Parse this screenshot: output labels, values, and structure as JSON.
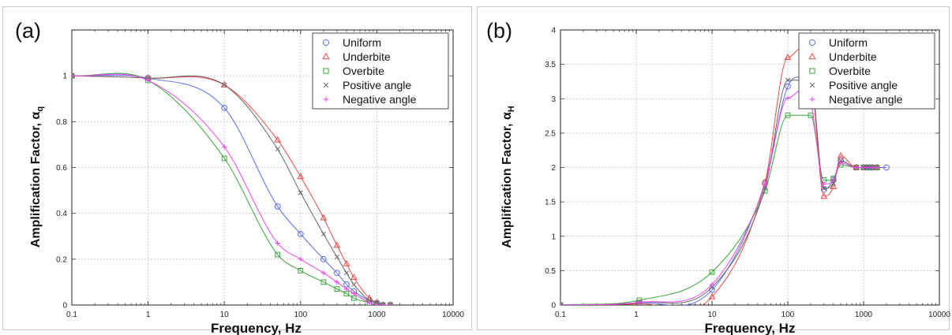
{
  "colors": {
    "Uniform": "#5b6ee8",
    "Underbite": "#ef4a4a",
    "Overbite": "#3aa53a",
    "Positive angle": "#666666",
    "Negative angle": "#ee44ee"
  },
  "chart_data": [
    {
      "type": "line",
      "panel_label": "(a)",
      "xlabel": "Frequency, Hz",
      "ylabel": "Amplification Factor, α",
      "ylabel_sub": "q",
      "xscale": "log",
      "xlim": [
        0.1,
        10000
      ],
      "ylim": [
        0,
        1.2
      ],
      "xticks": [
        0.1,
        1,
        10,
        100,
        1000,
        10000
      ],
      "xtick_labels": [
        "0.1",
        "1",
        "10",
        "100",
        "1000",
        "10000"
      ],
      "yticks": [
        0,
        0.2,
        0.4,
        0.6,
        0.8,
        1
      ],
      "ytick_labels": [
        "0",
        "0.2",
        "0.4",
        "0.6",
        "0.8",
        "1"
      ],
      "grid": true,
      "legend_position": "top-right",
      "series": [
        {
          "name": "Uniform",
          "marker": "circle",
          "x": [
            0.1,
            1,
            10,
            50,
            100,
            200,
            300,
            400,
            500,
            800,
            1000,
            1200,
            1500
          ],
          "y": [
            1.0,
            0.99,
            0.86,
            0.43,
            0.31,
            0.2,
            0.14,
            0.09,
            0.06,
            0.02,
            0.01,
            0.0,
            0.0
          ]
        },
        {
          "name": "Underbite",
          "marker": "triangle",
          "x": [
            0.1,
            1,
            10,
            50,
            100,
            200,
            300,
            400,
            500,
            800,
            1000,
            1200,
            1500
          ],
          "y": [
            1.0,
            0.99,
            0.96,
            0.72,
            0.56,
            0.38,
            0.26,
            0.18,
            0.12,
            0.03,
            0.01,
            0.0,
            0.0
          ]
        },
        {
          "name": "Overbite",
          "marker": "square",
          "x": [
            0.1,
            1,
            10,
            50,
            100,
            200,
            300,
            400,
            500,
            800,
            1000,
            1200,
            1500
          ],
          "y": [
            1.0,
            0.98,
            0.64,
            0.22,
            0.15,
            0.1,
            0.07,
            0.05,
            0.03,
            0.01,
            0.0,
            0.0,
            0.0
          ]
        },
        {
          "name": "Positive angle",
          "marker": "x",
          "x": [
            0.1,
            1,
            10,
            50,
            100,
            200,
            300,
            400,
            500,
            800,
            1000,
            1200,
            1500
          ],
          "y": [
            1.0,
            0.99,
            0.96,
            0.68,
            0.49,
            0.31,
            0.21,
            0.14,
            0.09,
            0.02,
            0.01,
            0.0,
            0.0
          ]
        },
        {
          "name": "Negative angle",
          "marker": "plus",
          "x": [
            0.1,
            1,
            10,
            50,
            100,
            200,
            300,
            400,
            500,
            800,
            1000,
            1200,
            1500
          ],
          "y": [
            1.0,
            0.98,
            0.69,
            0.27,
            0.2,
            0.14,
            0.1,
            0.07,
            0.05,
            0.01,
            0.0,
            0.0,
            0.0
          ]
        }
      ]
    },
    {
      "type": "line",
      "panel_label": "(b)",
      "xlabel": "Frequency, Hz",
      "ylabel": "Amplification Factor, α",
      "ylabel_sub": "H",
      "xscale": "log",
      "xlim": [
        0.1,
        10000
      ],
      "ylim": [
        0,
        4
      ],
      "xticks": [
        0.1,
        1,
        10,
        100,
        1000,
        10000
      ],
      "xtick_labels": [
        "0.1",
        "1",
        "10",
        "100",
        "1000",
        "10000"
      ],
      "yticks": [
        0,
        0.5,
        1,
        1.5,
        2,
        2.5,
        3,
        3.5,
        4
      ],
      "ytick_labels": [
        "0",
        "0.5",
        "1",
        "1.5",
        "2",
        "2.5",
        "3",
        "3.5",
        "4"
      ],
      "grid": true,
      "legend_position": "top-right",
      "series": [
        {
          "name": "Uniform",
          "marker": "circle",
          "x": [
            0.1,
            1.1,
            10,
            50,
            100,
            200,
            300,
            400,
            500,
            800,
            1000,
            1100,
            1200,
            1300,
            1500,
            2000
          ],
          "y": [
            0.0,
            0.03,
            0.22,
            1.78,
            3.18,
            3.26,
            1.68,
            1.82,
            2.1,
            2.0,
            2.0,
            2.0,
            2.0,
            2.0,
            2.0,
            2.0
          ]
        },
        {
          "name": "Underbite",
          "marker": "triangle",
          "x": [
            0.1,
            1.1,
            10,
            50,
            100,
            200,
            300,
            400,
            500,
            800,
            1000,
            1100,
            1200,
            1300,
            1500
          ],
          "y": [
            0.0,
            0.02,
            0.12,
            1.78,
            3.6,
            3.43,
            1.58,
            1.72,
            2.17,
            2.0,
            2.0,
            2.0,
            2.0,
            2.0,
            2.0
          ]
        },
        {
          "name": "Overbite",
          "marker": "square",
          "x": [
            0.1,
            1.1,
            10,
            50,
            100,
            200,
            300,
            400,
            500,
            800,
            1000,
            1100,
            1200,
            1300,
            1500
          ],
          "y": [
            0.0,
            0.07,
            0.48,
            1.66,
            2.76,
            2.76,
            1.82,
            1.84,
            2.04,
            2.0,
            2.0,
            2.0,
            2.0,
            2.0,
            2.0
          ]
        },
        {
          "name": "Positive angle",
          "marker": "x",
          "x": [
            0.1,
            1.1,
            10,
            50,
            100,
            200,
            300,
            400,
            500,
            800,
            1000,
            1100,
            1200,
            1300,
            1500
          ],
          "y": [
            0.0,
            0.04,
            0.26,
            1.7,
            3.27,
            3.27,
            1.7,
            1.77,
            2.1,
            2.0,
            2.0,
            2.0,
            2.0,
            2.0,
            2.0
          ]
        },
        {
          "name": "Negative angle",
          "marker": "plus",
          "x": [
            0.1,
            1.1,
            10,
            50,
            100,
            200,
            300,
            400,
            500,
            800,
            1000,
            1100,
            1200,
            1300,
            1500
          ],
          "y": [
            0.0,
            0.04,
            0.3,
            1.75,
            3.01,
            2.96,
            1.76,
            1.82,
            2.07,
            2.0,
            2.0,
            2.0,
            2.0,
            2.0,
            2.0
          ]
        }
      ]
    }
  ]
}
